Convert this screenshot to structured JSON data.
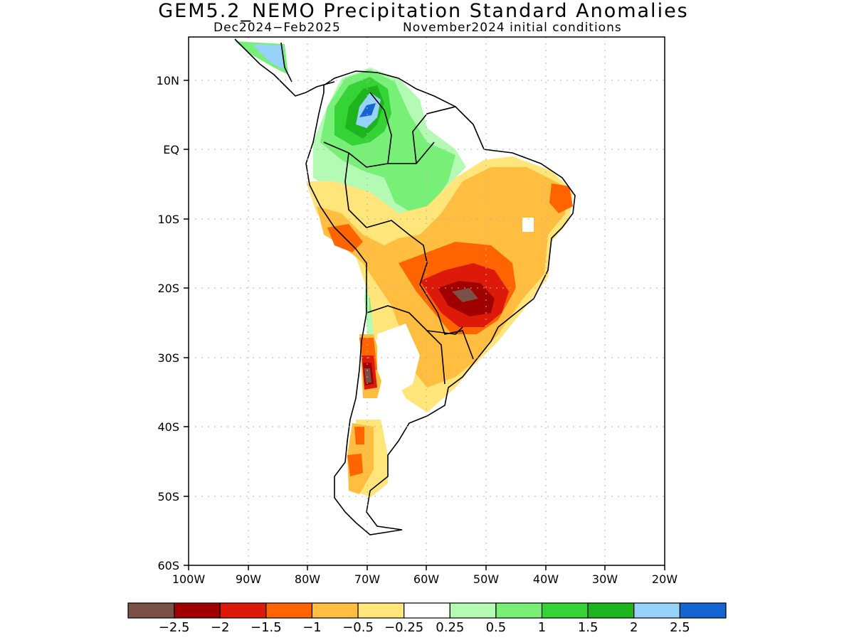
{
  "title": "GEM5.2_NEMO Precipitation Standard Anomalies",
  "period": "Dec2024−Feb2025",
  "init": "November2024 initial conditions",
  "lat_labels": [
    "10N",
    "EQ",
    "10S",
    "20S",
    "30S",
    "40S",
    "50S",
    "60S"
  ],
  "lon_labels": [
    "100W",
    "90W",
    "80W",
    "70W",
    "60W",
    "50W",
    "40W",
    "30W",
    "20W"
  ],
  "colorbar": {
    "colors": [
      "#7a5047",
      "#a00000",
      "#dd1a0a",
      "#ff6400",
      "#ffbe40",
      "#ffe57a",
      "#ffffff",
      "#b4fab4",
      "#78f078",
      "#36d336",
      "#1eb41e",
      "#96d2fa",
      "#1464d2"
    ],
    "labels": [
      "−2.5",
      "−2",
      "−1.5",
      "−1",
      "−0.5",
      "−0.25",
      "0.25",
      "0.5",
      "1",
      "1.5",
      "2",
      "2.5"
    ]
  }
}
